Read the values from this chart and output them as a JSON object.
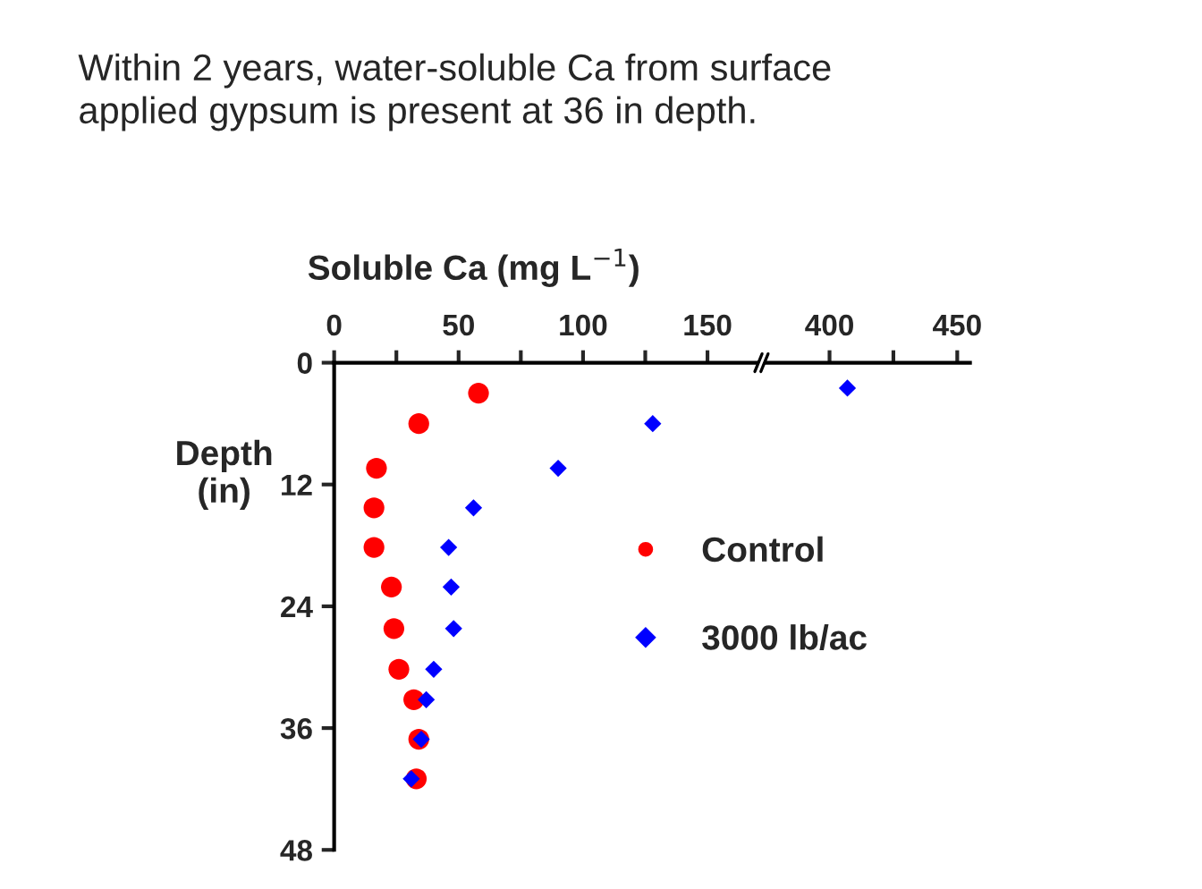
{
  "chart_data": [
    {
      "type": "scatter",
      "title": "Within 2 years, water-soluble Ca from surface\napplied gypsum is present at 36 in depth.",
      "xlabel": "Soluble Ca (mg L$^{−1}$)",
      "ylabel": "Depth\n(in)",
      "x": [
        3,
        6,
        10.4,
        14.3,
        18.2,
        22.1,
        26.2,
        30.2,
        33.2,
        37.1,
        41
      ],
      "series": [
        {
          "name": "Control",
          "color": "#ff0000",
          "marker": "circle",
          "values": [
            58,
            34,
            17,
            16,
            16,
            23,
            24,
            26,
            32,
            34,
            33
          ]
        },
        {
          "name": "3000 lb/ac",
          "color": "#0000ff",
          "marker": "diamond",
          "values": [
            null,
            128,
            90,
            56,
            46,
            47,
            48,
            40,
            37,
            35,
            31
          ]
        }
      ],
      "orientation": "horizontal",
      "xlim": [
        0,
        170
      ],
      "xticks": [
        0,
        {
          "value": 25,
          "label": null
        },
        50,
        {
          "value": 75,
          "label": null
        },
        100,
        {
          "value": 125,
          "label": null
        },
        150
      ],
      "ylim": [
        48,
        0
      ],
      "yticks": [
        0,
        12,
        24,
        36,
        48
      ],
      "legend": "right",
      "grid": false
    },
    {
      "type": "scatter",
      "x": [
        2.5
      ],
      "series": [
        {
          "color": "#0000ff",
          "marker": "diamond",
          "values": [
            407
          ]
        }
      ],
      "orientation": "horizontal",
      "xlim": [
        375,
        455
      ],
      "xticks": [
        400,
        {
          "value": 425,
          "label": null
        },
        450
      ],
      "ylim": [
        48,
        0
      ],
      "yticks": [
        0,
        12,
        24,
        36,
        48
      ],
      "tick_labels": "x",
      "grid": false
    }
  ]
}
